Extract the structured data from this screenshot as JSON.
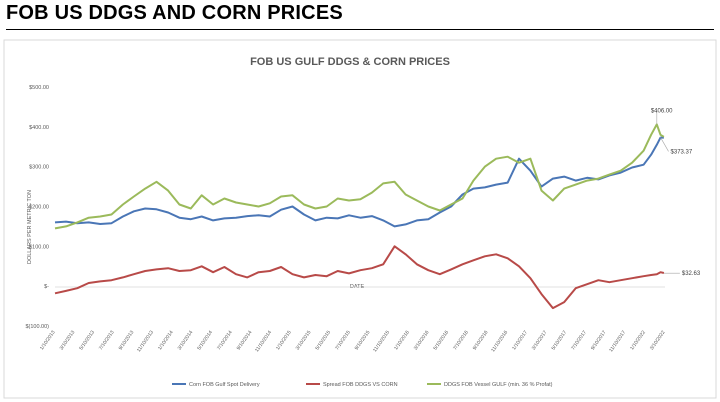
{
  "heading": "FOB US DDGS AND CORN PRICES",
  "chart_data": {
    "type": "line",
    "title": "FOB US GULF DDGS & CORN PRICES",
    "xlabel": "DATE",
    "ylabel": "DOLLARS PER METRIC TON",
    "ylim": [
      -100,
      500
    ],
    "yticks": [
      {
        "value": 500,
        "label": "$500.00"
      },
      {
        "value": 400,
        "label": "$400.00"
      },
      {
        "value": 300,
        "label": "$300.00"
      },
      {
        "value": 200,
        "label": "$200.00"
      },
      {
        "value": 100,
        "label": "$100.00"
      },
      {
        "value": 0,
        "label": "$-"
      },
      {
        "value": -100,
        "label": "$(100.00)"
      }
    ],
    "xlim": [
      "2013-01-10",
      "2022-01-03"
    ],
    "xticks": [
      "1/10/2013",
      "3/10/2013",
      "5/10/2013",
      "7/10/2013",
      "9/10/2013",
      "11/10/2013",
      "1/10/2014",
      "3/10/2014",
      "5/10/2014",
      "7/10/2014",
      "9/10/2014",
      "11/10/2014",
      "1/10/2015",
      "3/10/2015",
      "5/10/2015",
      "7/10/2015",
      "9/10/2015",
      "11/10/2015",
      "1/10/2016",
      "3/10/2016",
      "5/10/2016",
      "7/10/2016",
      "9/10/2016",
      "11/10/2016",
      "1/10/2017",
      "3/10/2017",
      "5/10/2017",
      "7/10/2017",
      "9/10/2017",
      "11/10/2017",
      "1/10/2022",
      "3/10/2022"
    ],
    "legend_position": "bottom",
    "grid": false,
    "series": [
      {
        "name": "Corn FOB Gulf Spot Delivery",
        "color": "#4a76b6",
        "x": [
          "2013-01-10",
          "2013-03-10",
          "2013-05-10",
          "2013-07-10",
          "2013-09-10",
          "2013-11-10",
          "2014-01-10",
          "2014-03-10",
          "2014-05-10",
          "2014-07-10",
          "2014-09-10",
          "2014-11-10",
          "2015-01-10",
          "2015-03-10",
          "2015-05-10",
          "2015-07-10",
          "2015-09-10",
          "2015-11-10",
          "2016-01-10",
          "2016-03-10",
          "2016-05-10",
          "2016-07-10",
          "2016-09-10",
          "2016-11-10",
          "2017-01-10",
          "2017-03-10",
          "2017-05-10",
          "2017-07-10",
          "2017-09-10",
          "2017-11-10",
          "2018-01-10",
          "2018-03-10",
          "2018-05-10",
          "2018-07-10",
          "2018-09-10",
          "2018-11-10",
          "2019-01-10",
          "2019-03-10",
          "2019-05-10",
          "2019-07-10",
          "2019-09-10",
          "2019-11-10",
          "2020-01-10",
          "2020-03-10",
          "2020-05-10",
          "2020-07-10",
          "2020-09-10",
          "2020-11-10",
          "2021-01-10",
          "2021-03-10",
          "2021-05-10",
          "2021-07-10",
          "2021-09-10",
          "2021-10-20",
          "2021-11-20",
          "2021-12-10",
          "2021-12-28"
        ],
        "values": [
          160,
          162,
          158,
          160,
          156,
          158,
          175,
          188,
          195,
          193,
          185,
          172,
          168,
          175,
          165,
          170,
          172,
          176,
          178,
          175,
          192,
          200,
          180,
          165,
          172,
          170,
          178,
          172,
          176,
          165,
          150,
          155,
          165,
          168,
          185,
          200,
          230,
          245,
          248,
          255,
          260,
          320,
          290,
          250,
          270,
          275,
          265,
          272,
          268,
          278,
          285,
          298,
          305,
          330,
          355,
          373,
          373
        ]
      },
      {
        "name": "Spread FOB DDGS VS CORN",
        "color": "#b84a48",
        "x": [
          "2013-01-10",
          "2013-03-10",
          "2013-05-10",
          "2013-07-10",
          "2013-09-10",
          "2013-11-10",
          "2014-01-10",
          "2014-03-10",
          "2014-05-10",
          "2014-07-10",
          "2014-09-10",
          "2014-11-10",
          "2015-01-10",
          "2015-03-10",
          "2015-05-10",
          "2015-07-10",
          "2015-09-10",
          "2015-11-10",
          "2016-01-10",
          "2016-03-10",
          "2016-05-10",
          "2016-07-10",
          "2016-09-10",
          "2016-11-10",
          "2017-01-10",
          "2017-03-10",
          "2017-05-10",
          "2017-07-10",
          "2017-09-10",
          "2017-11-10",
          "2018-01-10",
          "2018-03-10",
          "2018-05-10",
          "2018-07-10",
          "2018-09-10",
          "2018-11-10",
          "2019-01-10",
          "2019-03-10",
          "2019-05-10",
          "2019-07-10",
          "2019-09-10",
          "2019-11-10",
          "2020-01-10",
          "2020-03-10",
          "2020-05-10",
          "2020-07-10",
          "2020-09-10",
          "2020-11-10",
          "2021-01-10",
          "2021-03-10",
          "2021-05-10",
          "2021-07-10",
          "2021-09-10",
          "2021-10-20",
          "2021-11-20",
          "2021-12-10",
          "2021-12-28"
        ],
        "values": [
          -18,
          -12,
          -5,
          8,
          12,
          15,
          22,
          30,
          38,
          42,
          45,
          38,
          40,
          50,
          35,
          48,
          30,
          22,
          35,
          38,
          48,
          30,
          22,
          28,
          25,
          38,
          32,
          40,
          45,
          55,
          100,
          80,
          55,
          40,
          30,
          42,
          55,
          65,
          75,
          80,
          70,
          50,
          20,
          -20,
          -55,
          -40,
          -5,
          5,
          15,
          10,
          15,
          20,
          25,
          28,
          30,
          35,
          33
        ]
      },
      {
        "name": "DDGS FOB Vessel GULF  (min. 36 % Profat)",
        "color": "#9bba5b",
        "x": [
          "2013-01-10",
          "2013-03-10",
          "2013-05-10",
          "2013-07-10",
          "2013-09-10",
          "2013-11-10",
          "2014-01-10",
          "2014-03-10",
          "2014-05-10",
          "2014-07-10",
          "2014-09-10",
          "2014-11-10",
          "2015-01-10",
          "2015-03-10",
          "2015-05-10",
          "2015-07-10",
          "2015-09-10",
          "2015-11-10",
          "2016-01-10",
          "2016-03-10",
          "2016-05-10",
          "2016-07-10",
          "2016-09-10",
          "2016-11-10",
          "2017-01-10",
          "2017-03-10",
          "2017-05-10",
          "2017-07-10",
          "2017-09-10",
          "2017-11-10",
          "2018-01-10",
          "2018-03-10",
          "2018-05-10",
          "2018-07-10",
          "2018-09-10",
          "2018-11-10",
          "2019-01-10",
          "2019-03-10",
          "2019-05-10",
          "2019-07-10",
          "2019-09-10",
          "2019-11-10",
          "2020-01-10",
          "2020-03-10",
          "2020-05-10",
          "2020-07-10",
          "2020-09-10",
          "2020-11-10",
          "2021-01-10",
          "2021-03-10",
          "2021-05-10",
          "2021-07-10",
          "2021-09-10",
          "2021-10-20",
          "2021-11-20",
          "2021-12-10",
          "2021-12-28"
        ],
        "values": [
          145,
          150,
          160,
          172,
          175,
          180,
          205,
          225,
          245,
          262,
          240,
          205,
          195,
          228,
          205,
          220,
          210,
          205,
          200,
          208,
          225,
          228,
          205,
          195,
          200,
          220,
          215,
          218,
          235,
          258,
          262,
          230,
          215,
          200,
          190,
          205,
          220,
          265,
          300,
          320,
          325,
          310,
          320,
          240,
          215,
          245,
          255,
          265,
          270,
          280,
          290,
          310,
          340,
          380,
          406,
          380,
          375
        ]
      }
    ],
    "annotations": [
      {
        "label": "$406.00",
        "x": "2021-11-20",
        "y": 406
      },
      {
        "label": "$373.37",
        "x": "2021-12-10",
        "y": 373.37
      },
      {
        "label": "$32.63",
        "x": "2021-12-28",
        "y": 32.63
      }
    ]
  }
}
